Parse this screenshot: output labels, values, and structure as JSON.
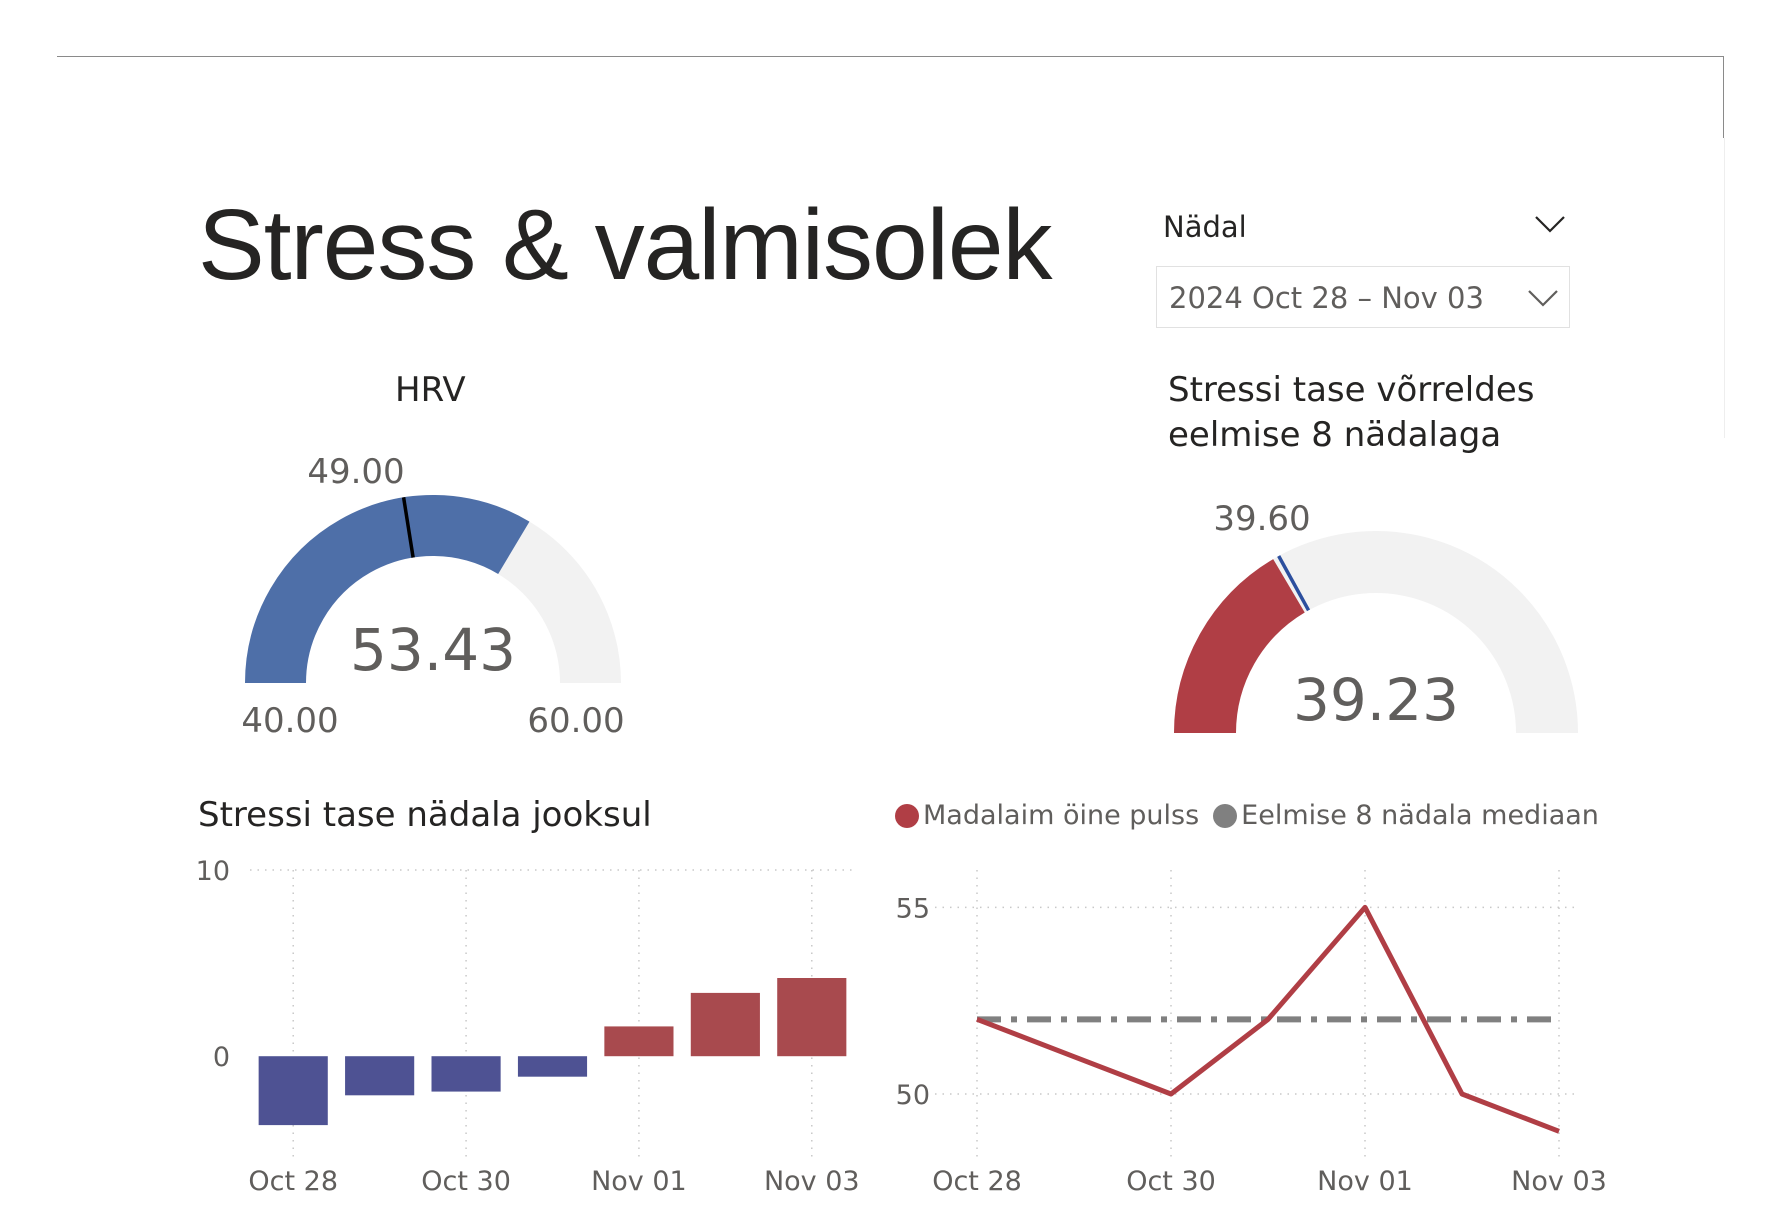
{
  "page": {
    "title": "Stress & valmisolek"
  },
  "slicer": {
    "label": "Nädal",
    "value": "2024 Oct 28 – Nov 03"
  },
  "hrv_gauge": {
    "title": "HRV",
    "value_label": "53.43",
    "target_label": "49.00",
    "min_label": "40.00",
    "max_label": "60.00",
    "value": 53.43,
    "target": 49.0,
    "min": 40.0,
    "max": 60.0,
    "fill_color": "#4e6fa8",
    "target_color": "#000000",
    "track_color": "#f2f2f2"
  },
  "stress_gauge": {
    "title_line1": "Stressi tase võrreldes",
    "title_line2": "eelmise 8 nädalaga",
    "value_label": "39.23",
    "target_label": "39.60",
    "fill_color": "#b03e45",
    "target_color": "#2c4f9e",
    "track_color": "#f2f2f2",
    "value_fraction": 0.33,
    "target_fraction": 0.34
  },
  "chart_data": [
    {
      "type": "bar",
      "title": "Stressi tase nädala jooksul",
      "x": [
        "Oct 28",
        "Oct 29",
        "Oct 30",
        "Oct 31",
        "Nov 01",
        "Nov 02",
        "Nov 03"
      ],
      "x_tick_labels": [
        "Oct 28",
        "Oct 30",
        "Nov 01",
        "Nov 03"
      ],
      "values": [
        -3.7,
        -2.1,
        -1.9,
        -1.1,
        1.6,
        3.4,
        4.2
      ],
      "y_ticks": [
        "0",
        "10"
      ],
      "ylim": [
        -4.5,
        10
      ],
      "negative_color": "#4e5293",
      "positive_color": "#a84a4e",
      "grid": true
    },
    {
      "type": "line",
      "title": "",
      "x": [
        "Oct 28",
        "Oct 29",
        "Oct 30",
        "Oct 31",
        "Nov 01",
        "Nov 02",
        "Nov 03"
      ],
      "x_tick_labels": [
        "Oct 28",
        "Oct 30",
        "Nov 01",
        "Nov 03"
      ],
      "y_ticks": [
        "50",
        "55"
      ],
      "ylim": [
        48.5,
        56
      ],
      "legend_position": "top",
      "series": [
        {
          "name": "Madalaim öine pulss",
          "color": "#b03e45",
          "values": [
            52,
            51,
            50,
            52,
            55,
            50,
            49
          ]
        },
        {
          "name": "Eelmise 8 nädala mediaan",
          "color": "#808080",
          "values": [
            52,
            52,
            52,
            52,
            52,
            52,
            52
          ]
        }
      ],
      "grid": true
    }
  ]
}
